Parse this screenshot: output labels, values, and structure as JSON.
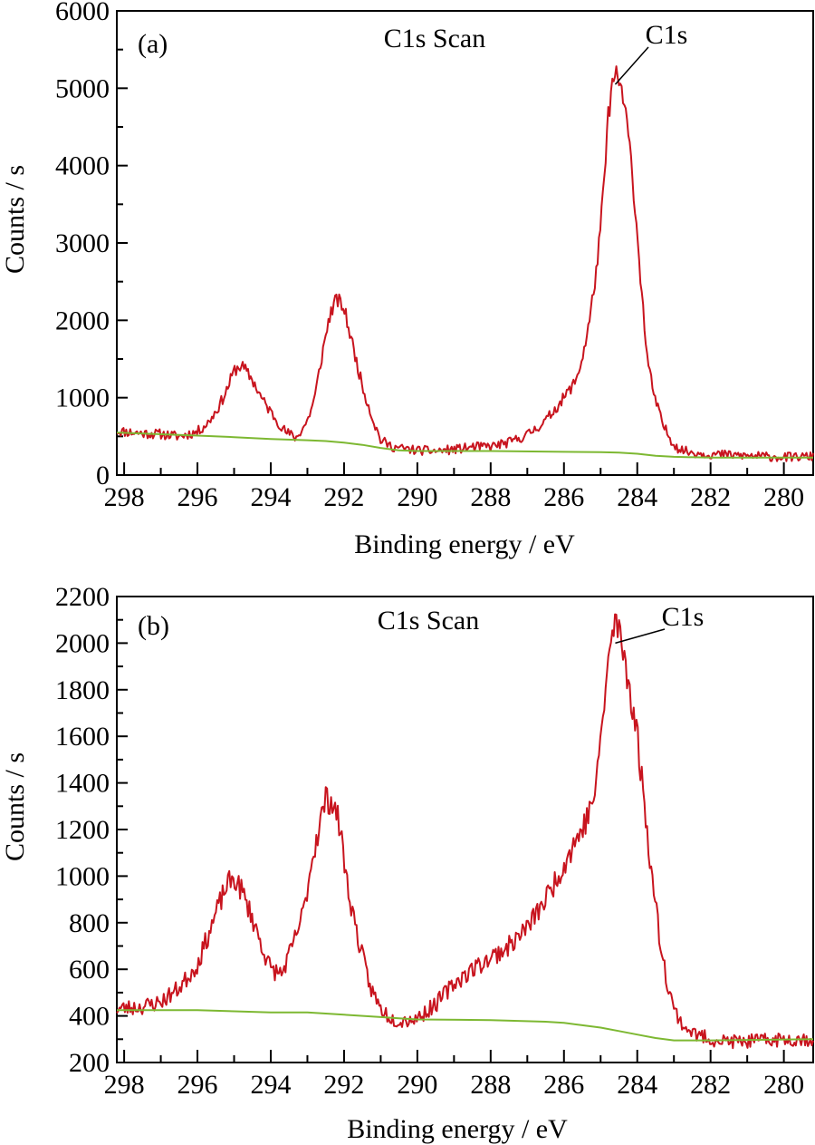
{
  "colors": {
    "spectrum": "#c8141e",
    "background_line": "#7db832",
    "axis": "#000000"
  },
  "chart_data": [
    {
      "type": "line",
      "panel_label": "(a)",
      "title": "C1s Scan",
      "annotation": "C1s",
      "xlabel": "Binding energy / eV",
      "ylabel": "Counts / s",
      "x_reversed": true,
      "xlim": [
        298.2,
        279.2
      ],
      "ylim": [
        0,
        6000
      ],
      "x_ticks": [
        298,
        296,
        294,
        292,
        290,
        288,
        286,
        284,
        282,
        280
      ],
      "y_ticks": [
        0,
        1000,
        2000,
        3000,
        4000,
        5000,
        6000
      ],
      "annotation_point": [
        284.6,
        5050
      ],
      "series": [
        {
          "role": "spectrum",
          "noise": 55,
          "seed": 11,
          "x": [
            298.2,
            297.5,
            297.0,
            296.5,
            296.0,
            295.7,
            295.4,
            295.2,
            295.0,
            294.8,
            294.5,
            294.2,
            293.9,
            293.6,
            293.3,
            293.0,
            292.8,
            292.6,
            292.4,
            292.2,
            292.0,
            291.8,
            291.5,
            291.2,
            291.0,
            290.7,
            290.4,
            290.0,
            289.5,
            289.0,
            288.5,
            288.0,
            287.5,
            287.0,
            286.5,
            286.2,
            286.0,
            285.7,
            285.5,
            285.3,
            285.1,
            285.0,
            284.9,
            284.8,
            284.7,
            284.6,
            284.5,
            284.4,
            284.3,
            284.2,
            284.1,
            284.0,
            283.9,
            283.8,
            283.7,
            283.5,
            283.3,
            283.1,
            282.9,
            282.7,
            282.5,
            282.0,
            281.5,
            281.0,
            280.5,
            280.0,
            279.2
          ],
          "y": [
            570,
            540,
            530,
            500,
            560,
            680,
            900,
            1100,
            1350,
            1420,
            1230,
            950,
            750,
            560,
            480,
            700,
            1000,
            1550,
            2050,
            2280,
            2150,
            1750,
            1150,
            700,
            450,
            370,
            340,
            320,
            310,
            330,
            360,
            370,
            420,
            520,
            700,
            880,
            1000,
            1200,
            1500,
            2000,
            2700,
            3200,
            3800,
            4600,
            5000,
            5150,
            5100,
            4900,
            4600,
            4200,
            3700,
            3100,
            2500,
            1900,
            1400,
            950,
            650,
            470,
            350,
            310,
            290,
            270,
            260,
            250,
            240,
            230,
            240
          ]
        },
        {
          "role": "background",
          "noise": 0,
          "seed": 0,
          "x": [
            298.2,
            296.0,
            295.0,
            294.0,
            293.0,
            292.5,
            292.0,
            291.5,
            291.0,
            290.5,
            290.0,
            288.0,
            286.0,
            285.0,
            284.5,
            284.0,
            283.5,
            283.0,
            282.0,
            280.0,
            279.2
          ],
          "y": [
            550,
            510,
            490,
            465,
            450,
            440,
            420,
            390,
            350,
            320,
            310,
            310,
            300,
            295,
            290,
            275,
            250,
            235,
            225,
            225,
            225
          ]
        }
      ]
    },
    {
      "type": "line",
      "panel_label": "(b)",
      "title": "C1s Scan",
      "annotation": "C1s",
      "xlabel": "Binding energy / eV",
      "ylabel": "Counts / s",
      "x_reversed": true,
      "xlim": [
        298.2,
        279.2
      ],
      "ylim": [
        200,
        2200
      ],
      "x_ticks": [
        298,
        296,
        294,
        292,
        290,
        288,
        286,
        284,
        282,
        280
      ],
      "y_ticks": [
        200,
        400,
        600,
        800,
        1000,
        1200,
        1400,
        1600,
        1800,
        2000,
        2200
      ],
      "annotation_point": [
        284.6,
        2000
      ],
      "series": [
        {
          "role": "spectrum",
          "noise": 28,
          "seed": 23,
          "x": [
            298.2,
            297.5,
            297.0,
            296.5,
            296.0,
            295.7,
            295.4,
            295.2,
            295.0,
            294.8,
            294.5,
            294.2,
            294.0,
            293.7,
            293.4,
            293.1,
            292.9,
            292.7,
            292.5,
            292.3,
            292.1,
            291.9,
            291.6,
            291.3,
            291.0,
            290.7,
            290.5,
            290.0,
            289.5,
            289.0,
            288.5,
            288.0,
            287.5,
            287.0,
            286.5,
            286.0,
            285.7,
            285.5,
            285.3,
            285.1,
            285.0,
            284.9,
            284.8,
            284.7,
            284.6,
            284.5,
            284.4,
            284.3,
            284.2,
            284.0,
            283.8,
            283.6,
            283.4,
            283.2,
            283.0,
            282.8,
            282.6,
            282.4,
            282.0,
            281.5,
            281.0,
            280.5,
            280.0,
            279.2
          ],
          "y": [
            430,
            440,
            460,
            520,
            620,
            750,
            880,
            960,
            990,
            940,
            820,
            680,
            600,
            580,
            700,
            850,
            1050,
            1200,
            1330,
            1320,
            1200,
            950,
            720,
            530,
            430,
            390,
            380,
            390,
            450,
            540,
            600,
            650,
            700,
            780,
            900,
            1050,
            1150,
            1200,
            1280,
            1400,
            1600,
            1750,
            1900,
            2020,
            2100,
            2050,
            1980,
            1900,
            1800,
            1600,
            1300,
            1000,
            750,
            560,
            430,
            370,
            340,
            320,
            300,
            290,
            290,
            295,
            300,
            300
          ]
        },
        {
          "role": "background",
          "noise": 0,
          "seed": 0,
          "x": [
            298.2,
            296.0,
            295.0,
            294.0,
            293.0,
            292.0,
            291.0,
            290.5,
            290.0,
            288.0,
            286.5,
            286.0,
            285.5,
            285.0,
            284.5,
            284.0,
            283.5,
            283.0,
            282.0,
            279.2
          ],
          "y": [
            425,
            425,
            420,
            415,
            415,
            405,
            395,
            390,
            385,
            382,
            375,
            370,
            360,
            350,
            335,
            320,
            305,
            295,
            295,
            300
          ]
        }
      ]
    }
  ]
}
